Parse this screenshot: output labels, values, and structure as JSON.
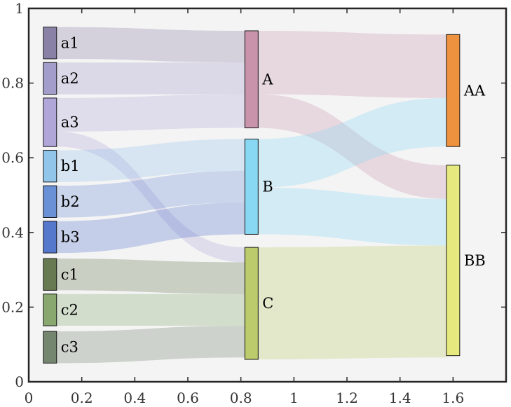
{
  "chart_data": {
    "type": "sankey",
    "title": "",
    "xlabel": "",
    "ylabel": "",
    "xlim": [
      0,
      1.8
    ],
    "ylim": [
      0,
      1
    ],
    "xticks": [
      0,
      0.2,
      0.4,
      0.6,
      0.8,
      1,
      1.2,
      1.4,
      1.6
    ],
    "xtick_labels": [
      "0",
      "0.2",
      "0.4",
      "0.6",
      "0.8",
      "1",
      "1.2",
      "1.4",
      "1.6"
    ],
    "yticks": [
      0,
      0.2,
      0.4,
      0.6,
      0.8,
      1
    ],
    "ytick_labels": [
      "0",
      "0.2",
      "0.4",
      "0.6",
      "0.8",
      "1"
    ],
    "grid": false,
    "background_color": "#f4f4f4",
    "layers": [
      {
        "x": 0.08,
        "nodes": [
          {
            "name": "a1",
            "color": "#8a82a6",
            "y0": 0.865,
            "y1": 0.95
          },
          {
            "name": "a2",
            "color": "#a29dcb",
            "y0": 0.77,
            "y1": 0.855
          },
          {
            "name": "a3",
            "color": "#b1a6d8",
            "y0": 0.63,
            "y1": 0.76
          },
          {
            "name": "b1",
            "color": "#91c5ea",
            "y0": 0.535,
            "y1": 0.62
          },
          {
            "name": "b2",
            "color": "#6a90d6",
            "y0": 0.44,
            "y1": 0.525
          },
          {
            "name": "b3",
            "color": "#5577cc",
            "y0": 0.345,
            "y1": 0.43
          },
          {
            "name": "c1",
            "color": "#687a52",
            "y0": 0.245,
            "y1": 0.33
          },
          {
            "name": "c2",
            "color": "#88a870",
            "y0": 0.15,
            "y1": 0.235
          },
          {
            "name": "c3",
            "color": "#748570",
            "y0": 0.05,
            "y1": 0.135
          }
        ]
      },
      {
        "x": 0.84,
        "nodes": [
          {
            "name": "A",
            "color": "#c994ab",
            "y0": 0.68,
            "y1": 0.94
          },
          {
            "name": "B",
            "color": "#88d8f4",
            "y0": 0.395,
            "y1": 0.65
          },
          {
            "name": "C",
            "color": "#bccc6c",
            "y0": 0.06,
            "y1": 0.36
          }
        ]
      },
      {
        "x": 1.6,
        "nodes": [
          {
            "name": "AA",
            "color": "#ef9240",
            "y0": 0.63,
            "y1": 0.93
          },
          {
            "name": "BB",
            "color": "#e6e97e",
            "y0": 0.07,
            "y1": 0.58
          }
        ]
      }
    ],
    "flows": [
      {
        "source": "a1",
        "target": "A",
        "value": 0.085
      },
      {
        "source": "a2",
        "target": "A",
        "value": 0.085
      },
      {
        "source": "a3",
        "target": "A",
        "value": 0.09
      },
      {
        "source": "a3",
        "target": "C",
        "value": 0.04
      },
      {
        "source": "b1",
        "target": "B",
        "value": 0.085
      },
      {
        "source": "b2",
        "target": "B",
        "value": 0.085
      },
      {
        "source": "b3",
        "target": "B",
        "value": 0.085
      },
      {
        "source": "c1",
        "target": "C",
        "value": 0.085
      },
      {
        "source": "c2",
        "target": "C",
        "value": 0.085
      },
      {
        "source": "c3",
        "target": "C",
        "value": 0.085
      },
      {
        "source": "A",
        "target": "AA",
        "value": 0.17
      },
      {
        "source": "A",
        "target": "BB",
        "value": 0.09
      },
      {
        "source": "B",
        "target": "AA",
        "value": 0.13
      },
      {
        "source": "B",
        "target": "BB",
        "value": 0.125
      },
      {
        "source": "C",
        "target": "BB",
        "value": 0.3
      }
    ]
  }
}
